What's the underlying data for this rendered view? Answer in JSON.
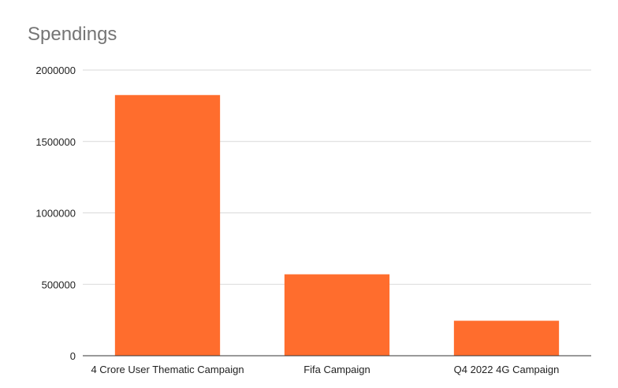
{
  "chart_data": {
    "type": "bar",
    "title": "Spendings",
    "xlabel": "",
    "ylabel": "",
    "categories": [
      "4 Crore User Thematic Campaign",
      "Fifa Campaign",
      "Q4 2022 4G Campaign"
    ],
    "values": [
      1825000,
      570000,
      245000
    ],
    "ylim": [
      0,
      2000000
    ],
    "yticks": [
      0,
      500000,
      1000000,
      1500000,
      2000000
    ],
    "ytick_labels": [
      "0",
      "500000",
      "1000000",
      "1500000",
      "2000000"
    ],
    "grid": true,
    "legend": "none",
    "bar_color": "#ff6d2d"
  }
}
